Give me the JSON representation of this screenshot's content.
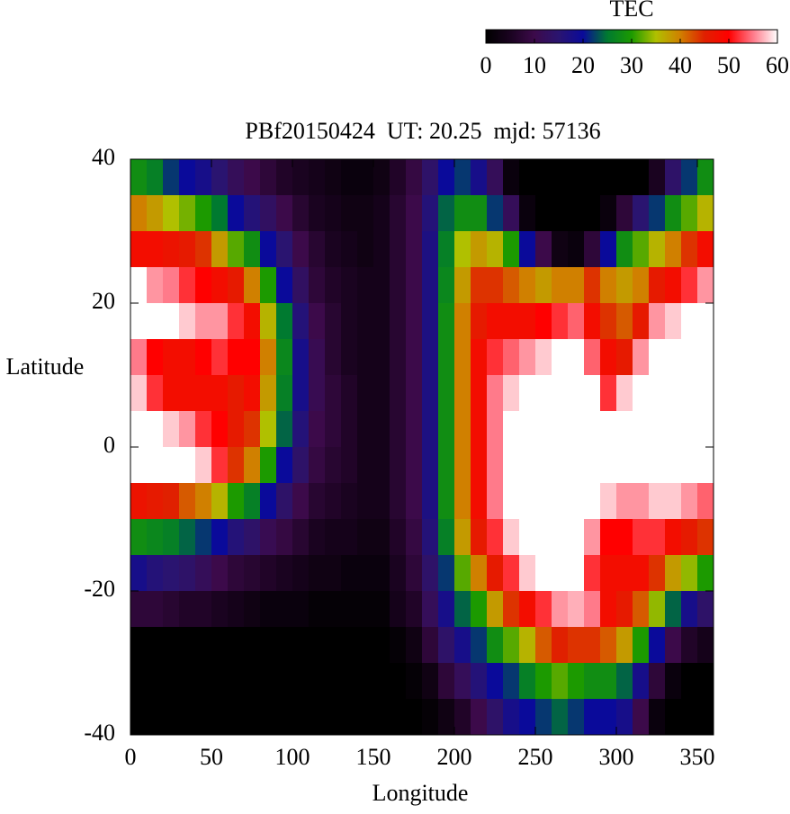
{
  "chart_data": {
    "type": "heatmap",
    "title": "PBf20150424  UT: 20.25  mjd: 57136",
    "x_label": "Longitude",
    "y_label": "Latitude",
    "xlim": [
      0,
      360
    ],
    "xticks": [
      0,
      50,
      100,
      150,
      200,
      250,
      300,
      350
    ],
    "ylim": [
      -40,
      40
    ],
    "yticks": [
      -40,
      -20,
      0,
      20,
      40
    ],
    "colorbar": {
      "label": "TEC",
      "lim": [
        0,
        60
      ],
      "ticks": [
        0,
        10,
        20,
        30,
        40,
        50,
        60
      ]
    },
    "colormap": [
      "#000000",
      "#1a0320",
      "#3c0a4a",
      "#2a1470",
      "#0a0a9a",
      "#007a30",
      "#1c9a00",
      "#b0c000",
      "#d08000",
      "#e02000",
      "#ff0000",
      "#ff7a8a",
      "#ffffff"
    ],
    "x": [
      5,
      15,
      25,
      35,
      45,
      55,
      65,
      75,
      85,
      95,
      105,
      115,
      125,
      135,
      145,
      155,
      165,
      175,
      185,
      195,
      205,
      215,
      225,
      235,
      245,
      255,
      265,
      275,
      285,
      295,
      305,
      315,
      325,
      335,
      345,
      355
    ],
    "y": [
      37.5,
      32.5,
      27.5,
      22.5,
      17.5,
      12.5,
      7.5,
      2.5,
      -2.5,
      -7.5,
      -12.5,
      -17.5,
      -22.5,
      -27.5,
      -32.5,
      -37.5
    ],
    "z": [
      [
        28,
        40,
        48,
        60,
        60,
        55,
        58,
        60,
        60,
        47,
        28,
        18,
        8,
        0,
        0,
        0
      ],
      [
        26,
        38,
        48,
        56,
        60,
        50,
        52,
        60,
        60,
        46,
        27,
        16,
        8,
        0,
        0,
        0
      ],
      [
        22,
        35,
        47,
        55,
        60,
        48,
        48,
        58,
        60,
        45,
        26,
        15,
        7,
        0,
        0,
        0
      ],
      [
        20,
        33,
        46,
        52,
        58,
        48,
        48,
        56,
        60,
        42,
        24,
        14,
        6,
        0,
        0,
        0
      ],
      [
        18,
        30,
        44,
        50,
        56,
        50,
        48,
        52,
        58,
        40,
        22,
        12,
        6,
        0,
        0,
        0
      ],
      [
        15,
        25,
        38,
        48,
        56,
        52,
        48,
        50,
        52,
        36,
        20,
        10,
        5,
        0,
        0,
        0
      ],
      [
        12,
        20,
        32,
        46,
        52,
        50,
        46,
        46,
        44,
        30,
        16,
        8,
        4,
        0,
        0,
        0
      ],
      [
        10,
        16,
        28,
        40,
        48,
        50,
        48,
        44,
        40,
        26,
        14,
        7,
        3,
        0,
        0,
        0
      ],
      [
        8,
        13,
        20,
        30,
        36,
        40,
        38,
        35,
        30,
        20,
        11,
        6,
        2,
        0,
        0,
        0
      ],
      [
        6,
        10,
        15,
        20,
        25,
        27,
        26,
        24,
        20,
        14,
        9,
        5,
        2,
        0,
        0,
        0
      ],
      [
        5,
        7,
        10,
        13,
        16,
        18,
        18,
        16,
        14,
        10,
        7,
        4,
        2,
        0,
        0,
        0
      ],
      [
        4,
        5,
        7,
        8,
        10,
        11,
        11,
        10,
        9,
        7,
        5,
        3,
        1,
        0,
        0,
        0
      ],
      [
        3,
        4,
        5,
        6,
        7,
        7,
        8,
        8,
        7,
        6,
        4,
        3,
        1,
        0,
        0,
        0
      ],
      [
        2,
        3,
        4,
        5,
        5,
        5,
        6,
        6,
        6,
        5,
        4,
        2,
        1,
        0,
        0,
        0
      ],
      [
        2,
        3,
        3,
        4,
        4,
        4,
        4,
        4,
        4,
        4,
        3,
        2,
        1,
        0,
        0,
        0
      ],
      [
        3,
        4,
        4,
        4,
        4,
        4,
        4,
        4,
        4,
        4,
        3,
        2,
        1,
        0,
        0,
        0
      ],
      [
        6,
        7,
        7,
        7,
        7,
        7,
        7,
        7,
        7,
        7,
        6,
        5,
        4,
        1,
        0,
        0
      ],
      [
        9,
        10,
        10,
        10,
        10,
        10,
        10,
        10,
        10,
        10,
        9,
        8,
        6,
        3,
        1,
        0
      ],
      [
        14,
        16,
        17,
        17,
        17,
        17,
        17,
        17,
        17,
        17,
        16,
        14,
        12,
        8,
        3,
        1
      ],
      [
        20,
        24,
        26,
        27,
        28,
        28,
        28,
        28,
        28,
        28,
        26,
        22,
        18,
        14,
        8,
        3
      ],
      [
        22,
        28,
        35,
        38,
        40,
        40,
        40,
        40,
        40,
        40,
        38,
        32,
        24,
        18,
        12,
        6
      ],
      [
        18,
        28,
        38,
        44,
        46,
        48,
        48,
        48,
        48,
        48,
        46,
        40,
        30,
        22,
        16,
        10
      ],
      [
        12,
        22,
        36,
        44,
        48,
        52,
        55,
        55,
        55,
        55,
        52,
        46,
        38,
        28,
        20,
        14
      ],
      [
        2,
        12,
        30,
        42,
        48,
        54,
        58,
        60,
        60,
        60,
        58,
        52,
        44,
        32,
        22,
        18
      ],
      [
        0,
        2,
        20,
        40,
        48,
        56,
        60,
        60,
        60,
        60,
        60,
        58,
        48,
        36,
        26,
        20
      ],
      [
        0,
        0,
        10,
        38,
        50,
        58,
        60,
        60,
        60,
        60,
        60,
        60,
        52,
        42,
        30,
        22
      ],
      [
        0,
        0,
        3,
        40,
        52,
        60,
        60,
        60,
        60,
        60,
        60,
        60,
        56,
        45,
        32,
        24
      ],
      [
        0,
        0,
        2,
        40,
        54,
        60,
        60,
        60,
        60,
        60,
        60,
        60,
        57,
        44,
        30,
        22
      ],
      [
        0,
        0,
        8,
        44,
        48,
        54,
        60,
        60,
        60,
        60,
        56,
        52,
        55,
        44,
        28,
        20
      ],
      [
        0,
        2,
        20,
        40,
        44,
        48,
        52,
        60,
        60,
        58,
        50,
        48,
        48,
        42,
        28,
        20
      ],
      [
        0,
        8,
        28,
        38,
        42,
        46,
        58,
        60,
        60,
        56,
        50,
        48,
        46,
        38,
        24,
        18
      ],
      [
        0,
        15,
        32,
        40,
        46,
        56,
        60,
        60,
        60,
        56,
        52,
        48,
        42,
        30,
        18,
        10
      ],
      [
        5,
        22,
        36,
        46,
        56,
        60,
        60,
        60,
        60,
        58,
        52,
        44,
        34,
        20,
        8,
        2
      ],
      [
        14,
        28,
        40,
        48,
        58,
        60,
        60,
        60,
        60,
        58,
        48,
        38,
        24,
        10,
        2,
        0
      ],
      [
        22,
        32,
        44,
        52,
        60,
        60,
        60,
        60,
        60,
        56,
        46,
        34,
        18,
        6,
        0,
        0
      ],
      [
        28,
        36,
        48,
        56,
        60,
        60,
        60,
        60,
        60,
        54,
        44,
        30,
        14,
        4,
        0,
        0
      ]
    ]
  }
}
